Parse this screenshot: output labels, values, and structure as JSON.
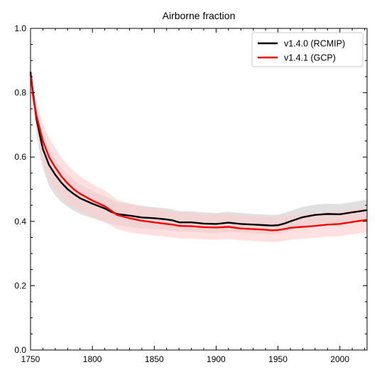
{
  "chart_data": {
    "type": "line",
    "title": "Airborne fraction",
    "xlabel": "",
    "ylabel": "",
    "xlim": [
      1750,
      2022
    ],
    "ylim": [
      0.0,
      1.0
    ],
    "xticks": [
      1750,
      1800,
      1850,
      1900,
      1950,
      2000
    ],
    "yticks": [
      0.0,
      0.2,
      0.4,
      0.6,
      0.8,
      1.0
    ],
    "xtick_labels": [
      "1750",
      "1800",
      "1850",
      "1900",
      "1950",
      "2000"
    ],
    "ytick_labels": [
      "0.0",
      "0.2",
      "0.4",
      "0.6",
      "0.8",
      "1.0"
    ],
    "grid": false,
    "legend_position": "top-right",
    "series": [
      {
        "name": "v1.4.0 (RCMIP)",
        "color": "#000000",
        "band_color": "#cccccc",
        "x": [
          1750,
          1752,
          1755,
          1758,
          1760,
          1765,
          1770,
          1775,
          1780,
          1785,
          1790,
          1800,
          1810,
          1815,
          1820,
          1830,
          1840,
          1850,
          1860,
          1865,
          1870,
          1880,
          1890,
          1900,
          1910,
          1920,
          1930,
          1940,
          1945,
          1950,
          1955,
          1960,
          1970,
          1980,
          1990,
          2000,
          2010,
          2022
        ],
        "y": [
          0.865,
          0.8,
          0.715,
          0.66,
          0.625,
          0.575,
          0.545,
          0.52,
          0.5,
          0.485,
          0.472,
          0.455,
          0.44,
          0.43,
          0.423,
          0.418,
          0.412,
          0.41,
          0.406,
          0.403,
          0.397,
          0.397,
          0.393,
          0.392,
          0.396,
          0.392,
          0.39,
          0.388,
          0.387,
          0.388,
          0.393,
          0.4,
          0.413,
          0.42,
          0.423,
          0.422,
          0.428,
          0.435
        ],
        "lower": [
          0.85,
          0.77,
          0.67,
          0.6,
          0.565,
          0.51,
          0.48,
          0.46,
          0.445,
          0.433,
          0.423,
          0.41,
          0.398,
          0.392,
          0.387,
          0.383,
          0.378,
          0.376,
          0.373,
          0.371,
          0.368,
          0.368,
          0.365,
          0.364,
          0.367,
          0.365,
          0.363,
          0.361,
          0.36,
          0.362,
          0.366,
          0.372,
          0.385,
          0.392,
          0.395,
          0.395,
          0.4,
          0.407
        ],
        "upper": [
          0.87,
          0.82,
          0.745,
          0.7,
          0.67,
          0.625,
          0.595,
          0.565,
          0.545,
          0.528,
          0.515,
          0.495,
          0.478,
          0.468,
          0.46,
          0.455,
          0.448,
          0.444,
          0.44,
          0.437,
          0.432,
          0.431,
          0.428,
          0.426,
          0.43,
          0.426,
          0.423,
          0.421,
          0.42,
          0.421,
          0.426,
          0.432,
          0.445,
          0.452,
          0.455,
          0.454,
          0.46,
          0.468
        ]
      },
      {
        "name": "v1.4.1 (GCP)",
        "color": "#ff0000",
        "band_color": "#ffcccc",
        "x": [
          1750,
          1752,
          1755,
          1758,
          1760,
          1765,
          1770,
          1775,
          1780,
          1785,
          1790,
          1800,
          1810,
          1815,
          1820,
          1830,
          1840,
          1850,
          1860,
          1865,
          1870,
          1880,
          1890,
          1900,
          1910,
          1920,
          1930,
          1940,
          1945,
          1950,
          1955,
          1960,
          1970,
          1980,
          1990,
          2000,
          2010,
          2022
        ],
        "y": [
          0.86,
          0.79,
          0.725,
          0.68,
          0.65,
          0.6,
          0.568,
          0.54,
          0.518,
          0.5,
          0.486,
          0.465,
          0.447,
          0.434,
          0.42,
          0.41,
          0.402,
          0.397,
          0.392,
          0.39,
          0.386,
          0.385,
          0.382,
          0.381,
          0.383,
          0.378,
          0.376,
          0.374,
          0.372,
          0.373,
          0.376,
          0.38,
          0.383,
          0.386,
          0.39,
          0.392,
          0.398,
          0.405
        ],
        "lower": [
          0.84,
          0.76,
          0.68,
          0.62,
          0.585,
          0.53,
          0.5,
          0.475,
          0.458,
          0.445,
          0.433,
          0.413,
          0.398,
          0.387,
          0.376,
          0.366,
          0.36,
          0.356,
          0.352,
          0.35,
          0.347,
          0.346,
          0.344,
          0.343,
          0.345,
          0.341,
          0.339,
          0.337,
          0.336,
          0.337,
          0.339,
          0.343,
          0.346,
          0.349,
          0.352,
          0.354,
          0.36,
          0.366
        ],
        "upper": [
          0.875,
          0.82,
          0.77,
          0.73,
          0.705,
          0.66,
          0.628,
          0.598,
          0.575,
          0.556,
          0.54,
          0.516,
          0.496,
          0.482,
          0.467,
          0.455,
          0.446,
          0.44,
          0.434,
          0.432,
          0.427,
          0.426,
          0.423,
          0.421,
          0.423,
          0.418,
          0.416,
          0.413,
          0.411,
          0.412,
          0.415,
          0.419,
          0.422,
          0.425,
          0.429,
          0.431,
          0.437,
          0.444
        ]
      }
    ]
  }
}
